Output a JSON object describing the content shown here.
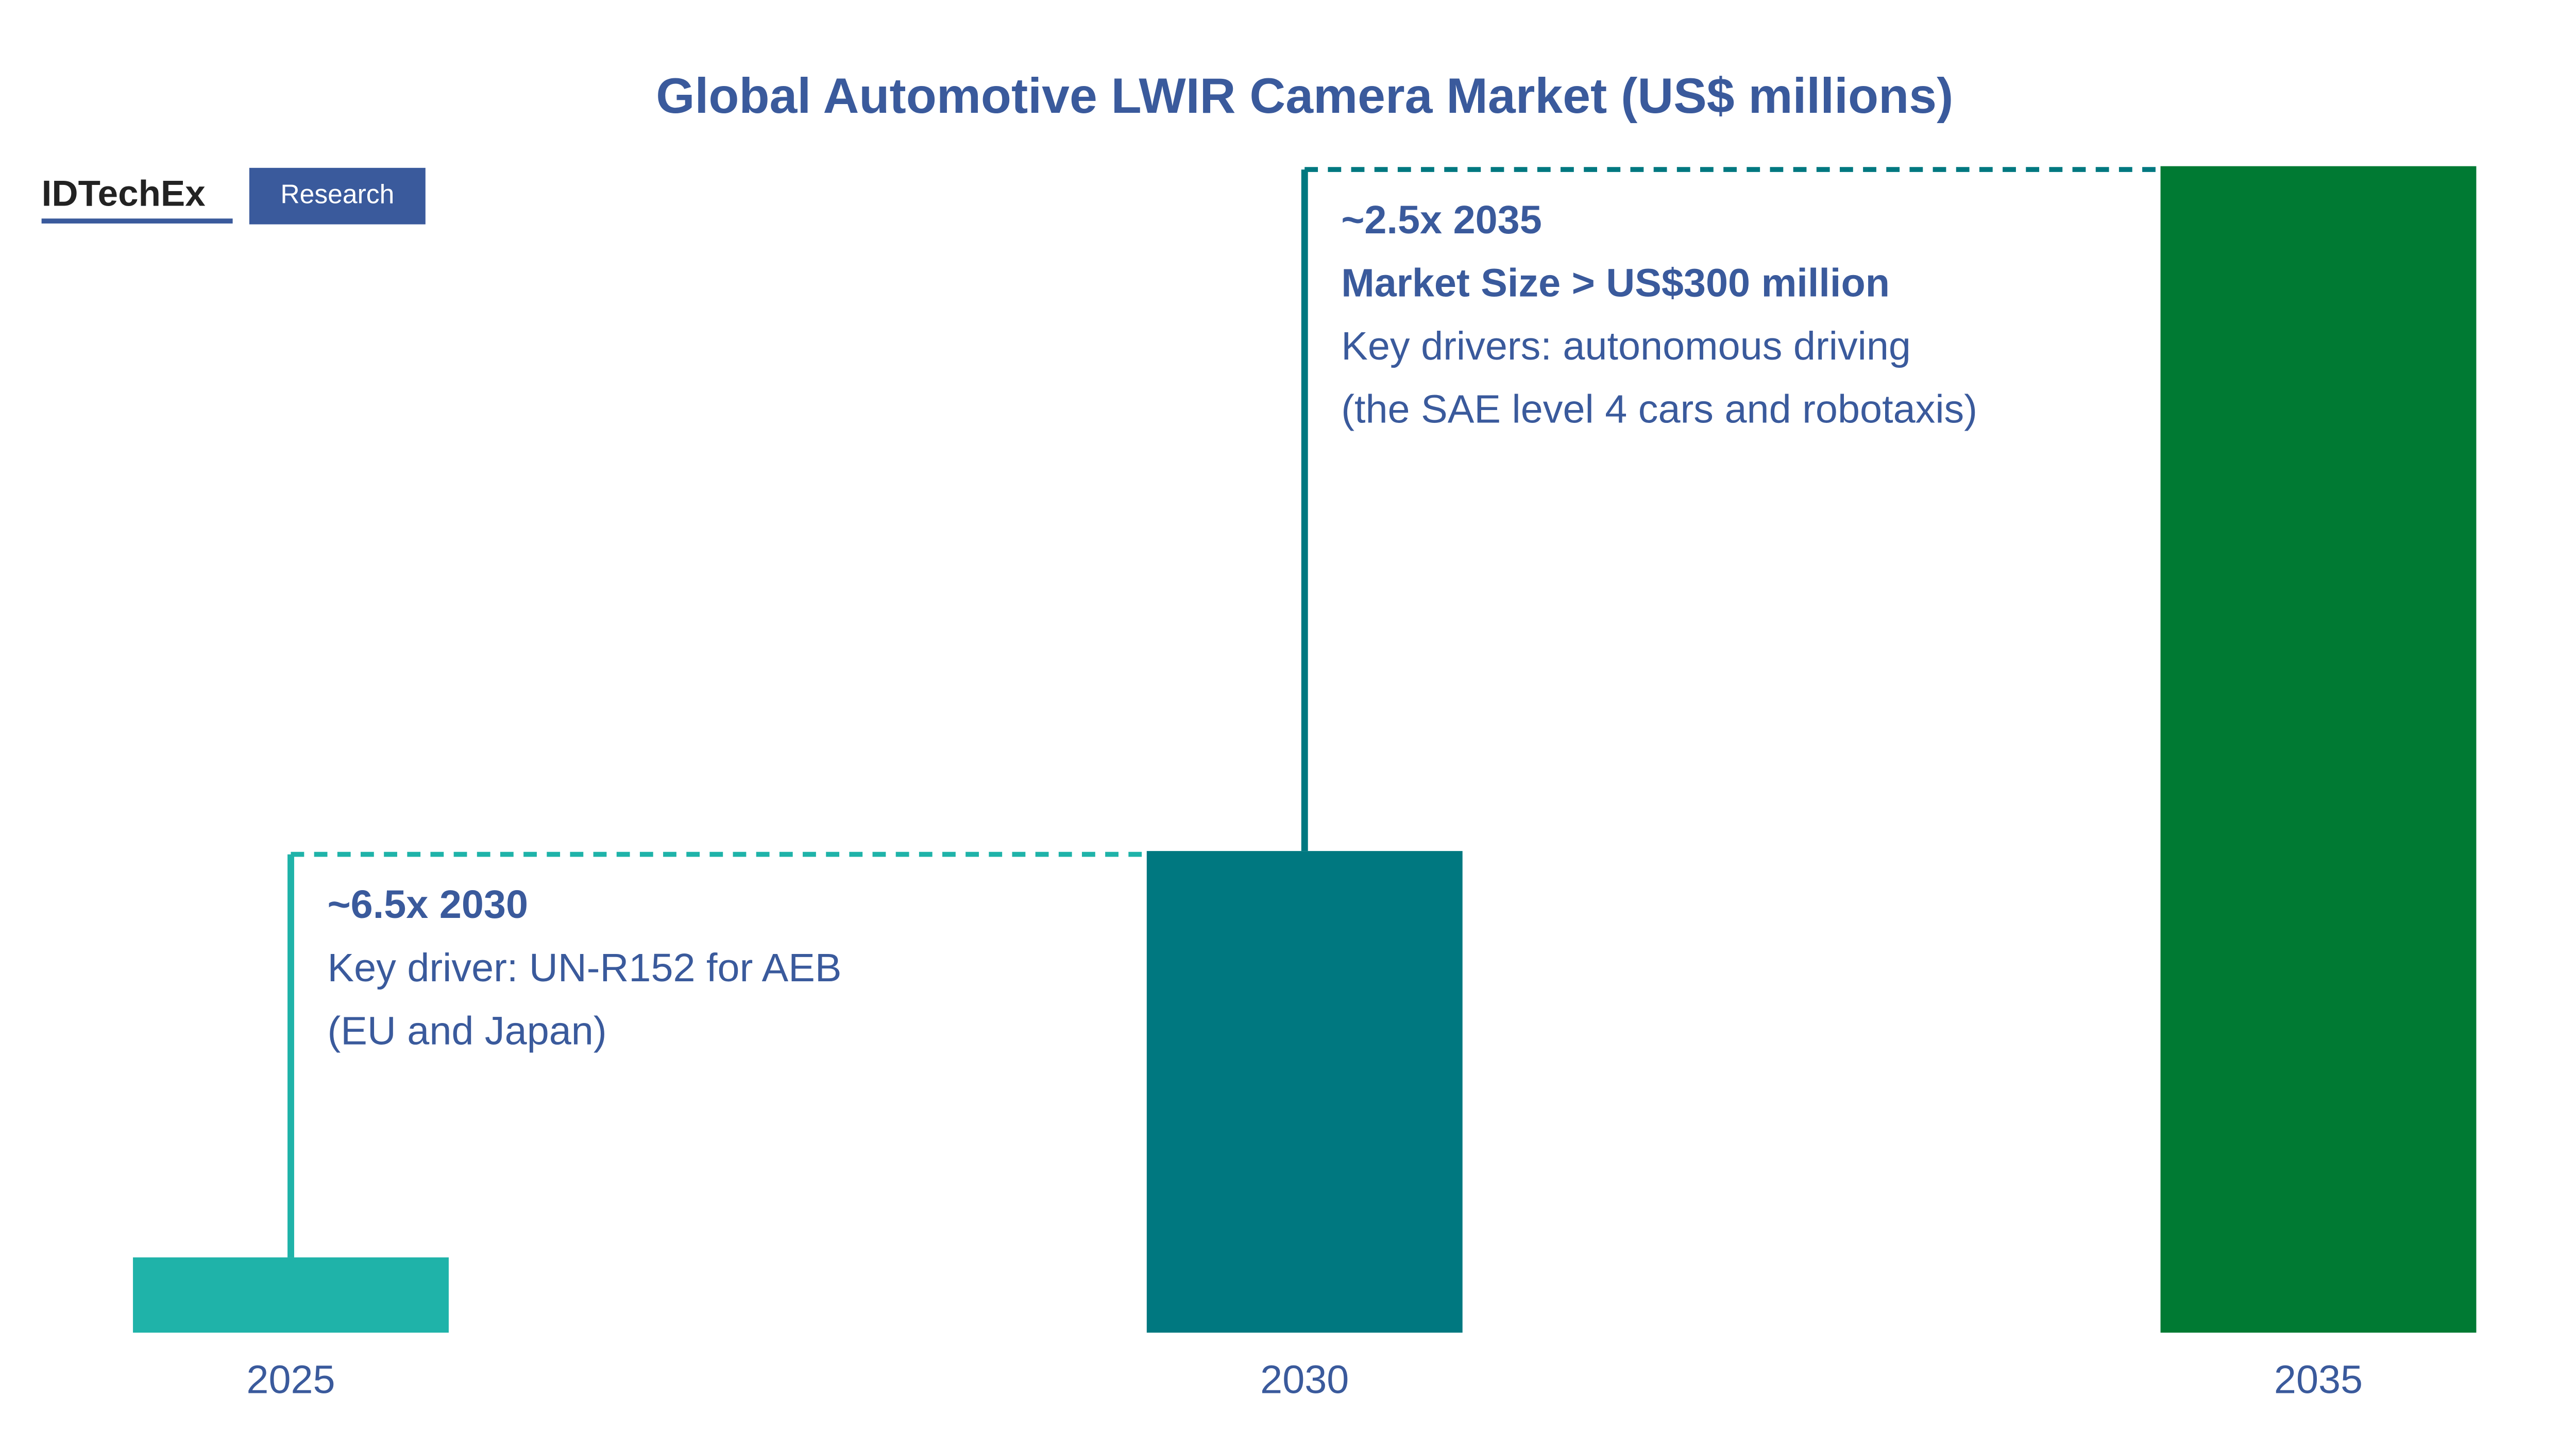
{
  "chart_data": {
    "type": "bar",
    "title": "Global Automotive LWIR Camera Market (US$ millions)",
    "brand": "IDTechEx",
    "brand_tag": "Research",
    "categories": [
      "2025",
      "2030",
      "2035"
    ],
    "values": [
      20,
      128,
      310
    ],
    "colors": [
      "#1fb3a9",
      "#007880",
      "#007a33"
    ],
    "ylim": [
      0,
      310
    ],
    "annotations": [
      {
        "lines": [
          "~6.5x 2030",
          "Key driver: UN-R152 for AEB",
          "(EU and Japan)"
        ]
      },
      {
        "lines": [
          "~2.5x 2035",
          "Market Size > US$300 million",
          "Key drivers: autonomous driving",
          "(the SAE level 4 cars and robotaxis)"
        ]
      }
    ]
  }
}
